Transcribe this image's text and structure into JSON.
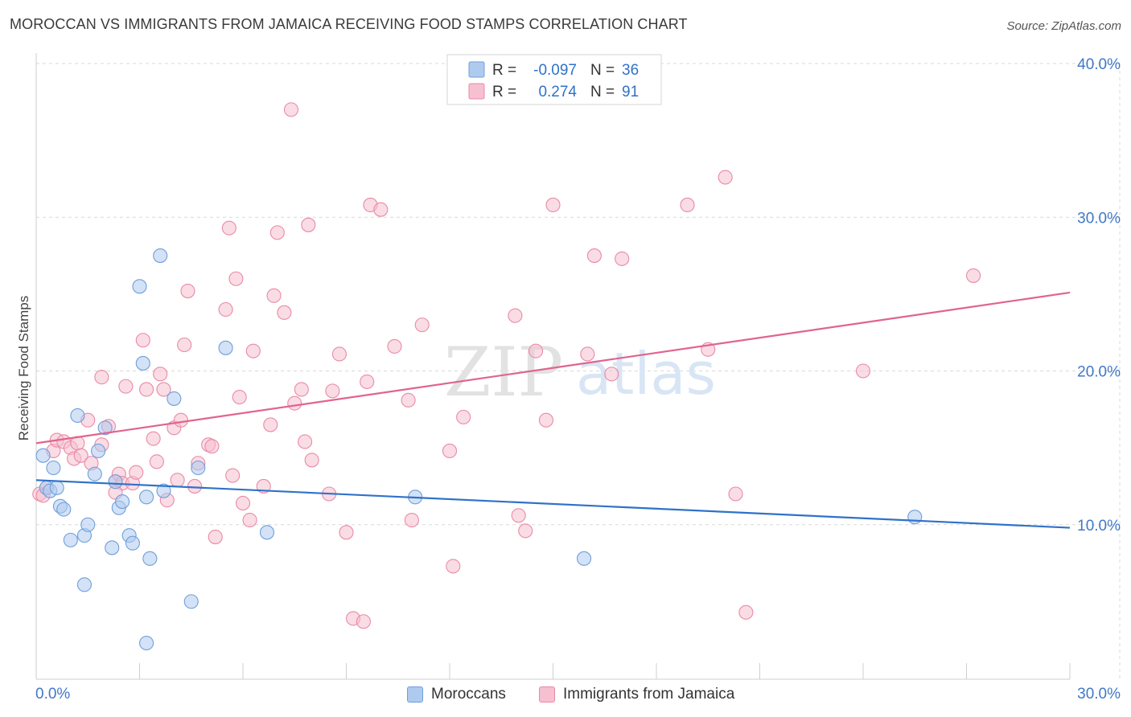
{
  "title": "MOROCCAN VS IMMIGRANTS FROM JAMAICA RECEIVING FOOD STAMPS CORRELATION CHART",
  "source": "Source: ZipAtlas.com",
  "watermark": {
    "part1": "ZIP",
    "part2": "atlas"
  },
  "colors": {
    "blue_fill": "#aecbef",
    "blue_stroke": "#6f9fdb",
    "blue_line": "#2f72c8",
    "pink_fill": "#f6c0d0",
    "pink_stroke": "#e98aa8",
    "pink_line": "#e0648e",
    "axis_label": "#4178c6",
    "grid": "#d9d9d9"
  },
  "stats_legend": [
    {
      "r_label": "R =",
      "r_value": "-0.097",
      "n_label": "N =",
      "n_value": "36"
    },
    {
      "r_label": "R =",
      "r_value": "0.274",
      "n_label": "N =",
      "n_value": "91"
    }
  ],
  "chart_data": {
    "type": "scatter",
    "title": "MOROCCAN VS IMMIGRANTS FROM JAMAICA RECEIVING FOOD STAMPS CORRELATION CHART",
    "xlabel": "",
    "ylabel": "Receiving Food Stamps",
    "xlim": [
      0,
      30
    ],
    "ylim": [
      0,
      40
    ],
    "x_tick_labels": [
      "0.0%",
      "30.0%"
    ],
    "y_ticks": [
      10,
      20,
      30,
      40
    ],
    "y_tick_labels": [
      "10.0%",
      "20.0%",
      "30.0%",
      "40.0%"
    ],
    "grid": true,
    "legend_position": "bottom-center",
    "series": [
      {
        "name": "Moroccans",
        "color": "#aecbef",
        "r": -0.097,
        "n": 36,
        "trend": {
          "x": [
            0,
            30
          ],
          "y": [
            12.9,
            9.8
          ]
        },
        "points": [
          [
            0.2,
            14.5
          ],
          [
            0.3,
            12.4
          ],
          [
            0.4,
            12.2
          ],
          [
            0.5,
            13.7
          ],
          [
            0.6,
            12.4
          ],
          [
            0.7,
            11.2
          ],
          [
            0.8,
            11.0
          ],
          [
            1.0,
            9.0
          ],
          [
            1.2,
            17.1
          ],
          [
            1.4,
            9.3
          ],
          [
            1.5,
            10.0
          ],
          [
            1.7,
            13.3
          ],
          [
            1.8,
            14.8
          ],
          [
            1.4,
            6.1
          ],
          [
            2.0,
            16.3
          ],
          [
            2.2,
            8.5
          ],
          [
            2.3,
            12.8
          ],
          [
            2.4,
            11.1
          ],
          [
            2.5,
            11.5
          ],
          [
            2.7,
            9.3
          ],
          [
            2.8,
            8.8
          ],
          [
            3.0,
            25.5
          ],
          [
            3.1,
            20.5
          ],
          [
            3.2,
            11.8
          ],
          [
            3.3,
            7.8
          ],
          [
            3.6,
            27.5
          ],
          [
            3.7,
            12.2
          ],
          [
            4.0,
            18.2
          ],
          [
            3.2,
            2.3
          ],
          [
            4.5,
            5.0
          ],
          [
            4.7,
            13.7
          ],
          [
            5.5,
            21.5
          ],
          [
            6.7,
            9.5
          ],
          [
            11.0,
            11.8
          ],
          [
            15.9,
            7.8
          ],
          [
            25.5,
            10.5
          ]
        ]
      },
      {
        "name": "Immigrants from Jamaica",
        "color": "#f6c0d0",
        "r": 0.274,
        "n": 91,
        "trend": {
          "x": [
            0,
            30
          ],
          "y": [
            15.3,
            25.1
          ]
        },
        "points": [
          [
            0.1,
            12.0
          ],
          [
            0.3,
            12.4
          ],
          [
            0.5,
            14.8
          ],
          [
            0.6,
            15.5
          ],
          [
            0.8,
            15.4
          ],
          [
            1.0,
            15.0
          ],
          [
            1.1,
            14.3
          ],
          [
            1.2,
            15.3
          ],
          [
            1.3,
            14.5
          ],
          [
            1.5,
            16.8
          ],
          [
            1.6,
            14.0
          ],
          [
            1.9,
            15.2
          ],
          [
            1.9,
            19.6
          ],
          [
            2.1,
            16.4
          ],
          [
            2.3,
            12.8
          ],
          [
            2.4,
            13.3
          ],
          [
            2.5,
            12.7
          ],
          [
            2.6,
            19.0
          ],
          [
            2.8,
            12.7
          ],
          [
            2.9,
            13.4
          ],
          [
            3.1,
            22.0
          ],
          [
            3.2,
            18.8
          ],
          [
            3.4,
            15.6
          ],
          [
            3.5,
            14.1
          ],
          [
            3.6,
            19.8
          ],
          [
            3.7,
            18.8
          ],
          [
            3.8,
            11.6
          ],
          [
            4.0,
            16.3
          ],
          [
            4.1,
            12.9
          ],
          [
            4.2,
            16.8
          ],
          [
            4.3,
            21.7
          ],
          [
            4.4,
            25.2
          ],
          [
            4.6,
            12.5
          ],
          [
            4.7,
            14.0
          ],
          [
            5.0,
            15.2
          ],
          [
            5.1,
            15.1
          ],
          [
            5.2,
            9.2
          ],
          [
            5.5,
            24.0
          ],
          [
            5.6,
            29.3
          ],
          [
            5.7,
            13.2
          ],
          [
            5.8,
            26.0
          ],
          [
            5.9,
            18.3
          ],
          [
            6.0,
            11.4
          ],
          [
            6.2,
            10.3
          ],
          [
            6.3,
            21.3
          ],
          [
            6.6,
            12.5
          ],
          [
            6.8,
            16.5
          ],
          [
            6.9,
            24.9
          ],
          [
            7.0,
            29.0
          ],
          [
            7.2,
            23.8
          ],
          [
            7.4,
            37.0
          ],
          [
            7.5,
            17.9
          ],
          [
            7.7,
            18.8
          ],
          [
            7.8,
            15.4
          ],
          [
            7.9,
            29.5
          ],
          [
            8.0,
            14.2
          ],
          [
            8.5,
            12.0
          ],
          [
            8.6,
            18.7
          ],
          [
            8.8,
            21.1
          ],
          [
            9.0,
            9.5
          ],
          [
            9.2,
            3.9
          ],
          [
            9.5,
            3.7
          ],
          [
            9.6,
            19.3
          ],
          [
            9.7,
            30.8
          ],
          [
            10.0,
            30.5
          ],
          [
            10.4,
            21.6
          ],
          [
            10.8,
            18.1
          ],
          [
            10.9,
            10.3
          ],
          [
            11.2,
            23.0
          ],
          [
            12.0,
            14.8
          ],
          [
            12.1,
            7.3
          ],
          [
            12.4,
            17.0
          ],
          [
            13.9,
            23.6
          ],
          [
            14.0,
            10.6
          ],
          [
            14.2,
            9.6
          ],
          [
            14.5,
            21.3
          ],
          [
            14.8,
            16.8
          ],
          [
            15.0,
            30.8
          ],
          [
            16.0,
            21.1
          ],
          [
            16.2,
            27.5
          ],
          [
            16.7,
            19.8
          ],
          [
            17.0,
            27.3
          ],
          [
            18.9,
            30.8
          ],
          [
            19.5,
            21.4
          ],
          [
            20.0,
            32.6
          ],
          [
            20.3,
            12.0
          ],
          [
            20.6,
            4.3
          ],
          [
            27.2,
            26.2
          ],
          [
            2.3,
            12.1
          ],
          [
            0.2,
            11.9
          ],
          [
            24.0,
            20.0
          ]
        ]
      }
    ]
  }
}
